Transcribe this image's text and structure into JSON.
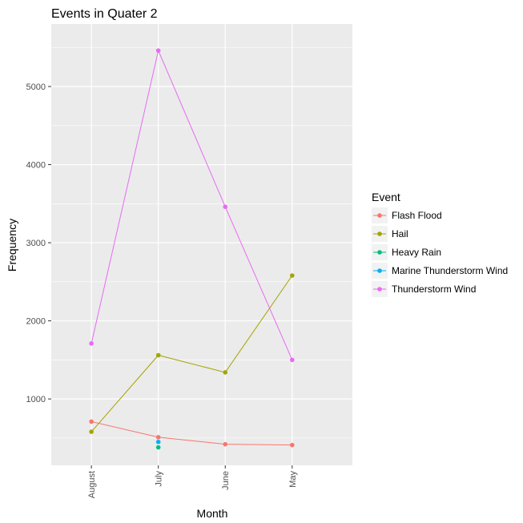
{
  "chart_data": {
    "type": "line",
    "title": "Events in Quater 2",
    "xlabel": "Month",
    "ylabel": "Frequency",
    "categories": [
      "August",
      "July",
      "June",
      "May"
    ],
    "ylim": [
      150,
      5800
    ],
    "yticks": [
      1000,
      2000,
      3000,
      4000,
      5000
    ],
    "grid": true,
    "legend": {
      "title": "Event",
      "position": "right"
    },
    "series": [
      {
        "name": "Flash Flood",
        "color": "#F8766D",
        "values": [
          710,
          510,
          420,
          410
        ]
      },
      {
        "name": "Hail",
        "color": "#A3A500",
        "values": [
          580,
          1560,
          1340,
          2580
        ]
      },
      {
        "name": "Heavy Rain",
        "color": "#00BF7D",
        "values": [
          null,
          380,
          null,
          null
        ]
      },
      {
        "name": "Marine Thunderstorm Wind",
        "color": "#00B0F6",
        "values": [
          null,
          450,
          null,
          null
        ]
      },
      {
        "name": "Thunderstorm Wind",
        "color": "#E76BF3",
        "values": [
          1710,
          5460,
          3460,
          1500
        ]
      }
    ]
  }
}
